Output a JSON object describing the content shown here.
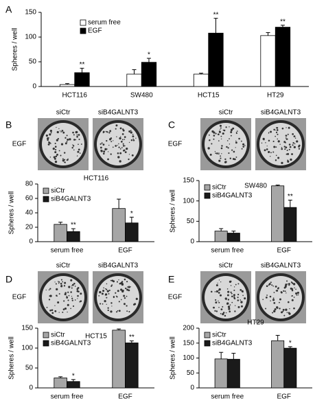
{
  "panels": [
    {
      "letter": "A"
    },
    {
      "letter": "B",
      "image_labels": [
        "siCtr",
        "siB4GALNT3"
      ],
      "row_label": "EGF"
    },
    {
      "letter": "C",
      "image_labels": [
        "siCtr",
        "siB4GALNT3"
      ],
      "row_label": "EGF"
    },
    {
      "letter": "D",
      "image_labels": [
        "siCtr",
        "siB4GALNT3"
      ],
      "row_label": "EGF"
    },
    {
      "letter": "E",
      "image_labels": [
        "siCtr",
        "siB4GALNT3"
      ],
      "row_label": "EGF"
    }
  ],
  "chart_data": [
    {
      "type": "bar",
      "y_label": "Spheres / well",
      "categories": [
        "HCT116",
        "SW480",
        "HCT15",
        "HT29"
      ],
      "series": [
        {
          "name": "serum free",
          "color": "#ffffff",
          "values": [
            4,
            25,
            25,
            103
          ],
          "errors": [
            2,
            9,
            2,
            6
          ],
          "labels": [
            null,
            null,
            null,
            null
          ]
        },
        {
          "name": "EGF",
          "color": "#000000",
          "values": [
            28,
            49,
            108,
            120
          ],
          "errors": [
            9,
            8,
            30,
            4
          ],
          "labels": [
            "**",
            "*",
            "**",
            "**"
          ]
        }
      ],
      "ylim": [
        0,
        150
      ],
      "yticks": [
        0,
        50,
        100,
        150
      ],
      "legend": "upper left"
    },
    {
      "type": "bar",
      "title": "HCT116",
      "y_label": "Spheres / well",
      "categories": [
        "serum free",
        "EGF"
      ],
      "series": [
        {
          "name": "siCtr",
          "color": "#a6a6a6",
          "values": [
            24,
            46
          ],
          "errors": [
            3,
            13
          ],
          "labels": [
            null,
            null
          ]
        },
        {
          "name": "siB4GALNT3",
          "color": "#1a1a1a",
          "values": [
            14,
            26
          ],
          "errors": [
            4,
            8
          ],
          "labels": [
            "**",
            "*"
          ]
        }
      ],
      "ylim": [
        0,
        80
      ],
      "yticks": [
        0,
        20,
        40,
        60,
        80
      ],
      "legend": "upper left"
    },
    {
      "type": "bar",
      "title": "SW480",
      "y_label": "Spheres / well",
      "categories": [
        "serum free",
        "EGF"
      ],
      "series": [
        {
          "name": "siCtr",
          "color": "#a6a6a6",
          "values": [
            26,
            137
          ],
          "errors": [
            6,
            2
          ],
          "labels": [
            null,
            null
          ]
        },
        {
          "name": "siB4GALNT3",
          "color": "#1a1a1a",
          "values": [
            21,
            84
          ],
          "errors": [
            5,
            18
          ],
          "labels": [
            null,
            "**"
          ]
        }
      ],
      "ylim": [
        0,
        150
      ],
      "yticks": [
        0,
        50,
        100,
        150
      ],
      "legend": "upper left"
    },
    {
      "type": "bar",
      "title": "HCT15",
      "y_label": "Spheres / well",
      "categories": [
        "serum free",
        "EGF"
      ],
      "series": [
        {
          "name": "siCtr",
          "color": "#a6a6a6",
          "values": [
            25,
            145
          ],
          "errors": [
            3,
            3
          ],
          "labels": [
            null,
            null
          ]
        },
        {
          "name": "siB4GALNT3",
          "color": "#1a1a1a",
          "values": [
            16,
            113
          ],
          "errors": [
            5,
            5
          ],
          "labels": [
            "*",
            "**"
          ]
        }
      ],
      "ylim": [
        0,
        150
      ],
      "yticks": [
        0,
        50,
        100,
        150
      ],
      "legend": "upper left"
    },
    {
      "type": "bar",
      "title": "HT29",
      "y_label": "Spheres / well",
      "categories": [
        "serum free",
        "EGF"
      ],
      "series": [
        {
          "name": "siCtr",
          "color": "#a6a6a6",
          "values": [
            97,
            158
          ],
          "errors": [
            22,
            18
          ],
          "labels": [
            null,
            null
          ]
        },
        {
          "name": "siB4GALNT3",
          "color": "#1a1a1a",
          "values": [
            96,
            133
          ],
          "errors": [
            20,
            5
          ],
          "labels": [
            null,
            "*"
          ]
        }
      ],
      "ylim": [
        0,
        200
      ],
      "yticks": [
        0,
        50,
        100,
        150,
        200
      ],
      "legend": "upper left"
    }
  ]
}
